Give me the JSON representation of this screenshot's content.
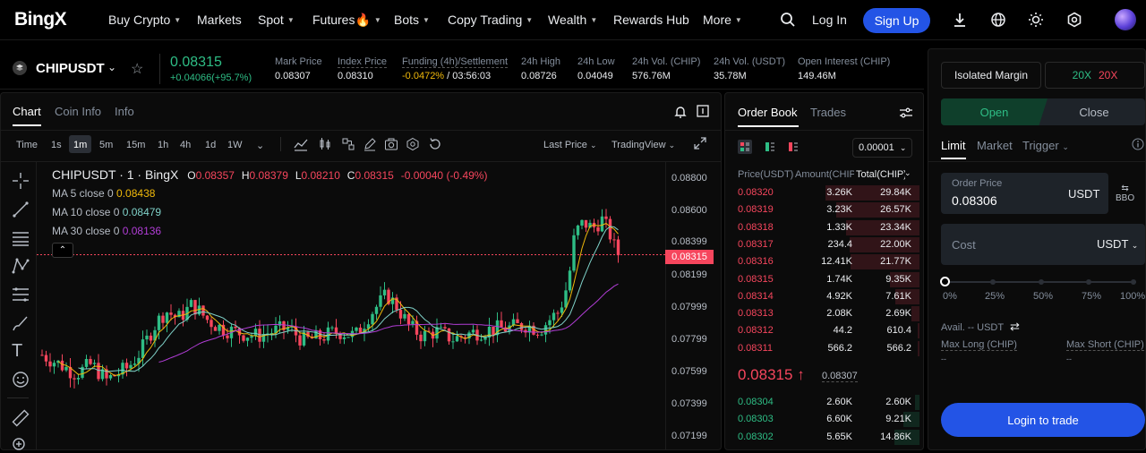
{
  "nav": {
    "logo": "BingX",
    "items": [
      {
        "label": "Buy Crypto",
        "caret": true,
        "x": 0
      },
      {
        "label": "Markets",
        "caret": false
      },
      {
        "label": "Spot",
        "caret": true
      },
      {
        "label": "Futures🔥",
        "caret": true
      },
      {
        "label": "Bots",
        "caret": true
      },
      {
        "label": "Copy Trading",
        "caret": true
      },
      {
        "label": "Wealth",
        "caret": true
      },
      {
        "label": "Rewards Hub",
        "caret": false
      },
      {
        "label": "More",
        "caret": true
      }
    ],
    "login": "Log In",
    "signup": "Sign Up"
  },
  "ticker": {
    "symbol": "CHIPUSDT",
    "last": "0.08315",
    "change": "+0.04066(+95.7%)",
    "stats": [
      {
        "label": "Mark Price",
        "value": "0.08307"
      },
      {
        "label": "Index Price",
        "value": "0.08310"
      },
      {
        "label": "Funding (4h)/Settlement",
        "value_a": "-0.0472%",
        "value_b": " / 03:56:03"
      },
      {
        "label": "24h High",
        "value": "0.08726"
      },
      {
        "label": "24h Low",
        "value": "0.04049"
      },
      {
        "label": "24h Vol. (CHIP)",
        "value": "576.76M"
      },
      {
        "label": "24h Vol. (USDT)",
        "value": "35.78M"
      },
      {
        "label": "Open Interest (CHIP)",
        "value": "149.46M"
      }
    ]
  },
  "chart_tabs": {
    "chart": "Chart",
    "coin_info": "Coin Info",
    "info": "Info"
  },
  "timebar": {
    "time": "Time",
    "intervals": [
      "1s",
      "1m",
      "5m",
      "15m",
      "1h",
      "4h",
      "1d",
      "1W"
    ],
    "active": "1m",
    "last_price": "Last Price",
    "tradingview": "TradingView"
  },
  "legend": {
    "title": "CHIPUSDT · 1 · BingX",
    "o_label": "O",
    "o": "0.08357",
    "h_label": "H",
    "h": "0.08379",
    "l_label": "L",
    "l": "0.08210",
    "c_label": "C",
    "c": "0.08315",
    "chg": "-0.00040 (-0.49%)",
    "ma5_label": "MA 5 close 0",
    "ma5": "0.08438",
    "ma10_label": "MA 10 close 0",
    "ma10": "0.08479",
    "ma30_label": "MA 30 close 0",
    "ma30": "0.08136"
  },
  "price_axis": [
    "0.08800",
    "0.08600",
    "0.08399",
    "0.08199",
    "0.07999",
    "0.07799",
    "0.07599",
    "0.07399",
    "0.07199"
  ],
  "current_price_tag": "0.08315",
  "colors": {
    "up": "#2ebd85",
    "down": "#f6465d",
    "ma5": "#f0b90b",
    "ma10": "#7fd1c8",
    "ma30": "#b13dd6",
    "accent": "#2354e6"
  },
  "orderbook": {
    "tab_book": "Order Book",
    "tab_trades": "Trades",
    "depth": "0.00001",
    "col_price": "Price(USDT)",
    "col_amount": "Amount(CHIP)",
    "col_total": "Total(CHIP)",
    "asks": [
      {
        "price": "0.08320",
        "amount": "3.26K",
        "total": "29.84K",
        "depth": 1.0
      },
      {
        "price": "0.08319",
        "amount": "3.23K",
        "total": "26.57K",
        "depth": 0.89
      },
      {
        "price": "0.08318",
        "amount": "1.33K",
        "total": "23.34K",
        "depth": 0.78
      },
      {
        "price": "0.08317",
        "amount": "234.4",
        "total": "22.00K",
        "depth": 0.74
      },
      {
        "price": "0.08316",
        "amount": "12.41K",
        "total": "21.77K",
        "depth": 0.73
      },
      {
        "price": "0.08315",
        "amount": "1.74K",
        "total": "9.35K",
        "depth": 0.31
      },
      {
        "price": "0.08314",
        "amount": "4.92K",
        "total": "7.61K",
        "depth": 0.26
      },
      {
        "price": "0.08313",
        "amount": "2.08K",
        "total": "2.69K",
        "depth": 0.09
      },
      {
        "price": "0.08312",
        "amount": "44.2",
        "total": "610.4",
        "depth": 0.02
      },
      {
        "price": "0.08311",
        "amount": "566.2",
        "total": "566.2",
        "depth": 0.02
      }
    ],
    "mid_price": "0.08315",
    "mid_arrow": "↑",
    "mark": "0.08307",
    "bids": [
      {
        "price": "0.08304",
        "amount": "2.60K",
        "total": "2.60K",
        "depth": 0.05
      },
      {
        "price": "0.08303",
        "amount": "6.60K",
        "total": "9.21K",
        "depth": 0.17
      },
      {
        "price": "0.08302",
        "amount": "5.65K",
        "total": "14.86K",
        "depth": 0.27
      }
    ]
  },
  "trade": {
    "margin_mode": "Isolated Margin",
    "lev_long": "20X",
    "lev_short": "20X",
    "open": "Open",
    "close": "Close",
    "order_types": [
      "Limit",
      "Market",
      "Trigger"
    ],
    "order_price_label": "Order Price",
    "order_price": "0.08306",
    "quote": "USDT",
    "bbo": "BBO",
    "cost_label": "Cost",
    "cost_unit": "USDT",
    "slider_marks": [
      "0%",
      "25%",
      "50%",
      "75%",
      "100%"
    ],
    "slider_value": 0,
    "avail": "Avail. -- USDT",
    "max_long": "Max Long (CHIP)",
    "max_short": "Max Short (CHIP)",
    "max_long_val": "--",
    "max_short_val": "--",
    "login_btn": "Login to trade"
  }
}
